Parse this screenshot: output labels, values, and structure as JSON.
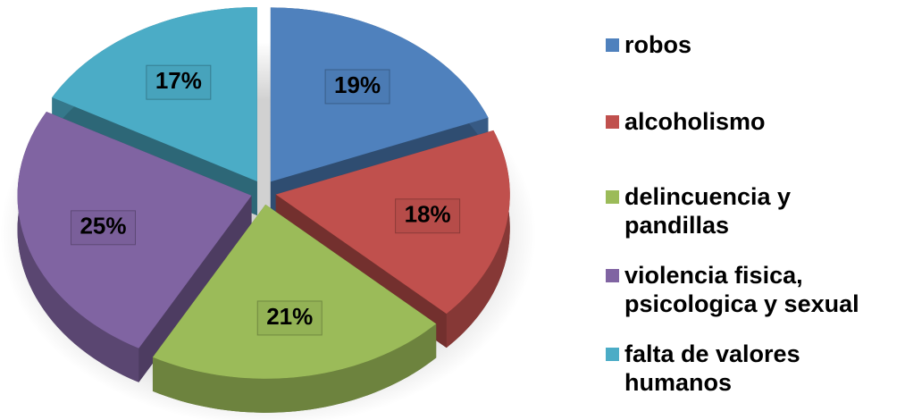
{
  "chart_data": {
    "type": "pie",
    "categories": [
      "robos",
      "alcoholismo",
      "delincuencia y pandillas",
      "violencia fisica, psicologica y sexual",
      "falta de valores humanos"
    ],
    "values": [
      19,
      18,
      21,
      25,
      17
    ],
    "value_labels": [
      "19%",
      "18%",
      "21%",
      "25%",
      "17%"
    ],
    "colors": [
      "#4f81bd",
      "#c0504d",
      "#9bbb59",
      "#8064a2",
      "#4bacc6"
    ],
    "legend": "right"
  }
}
